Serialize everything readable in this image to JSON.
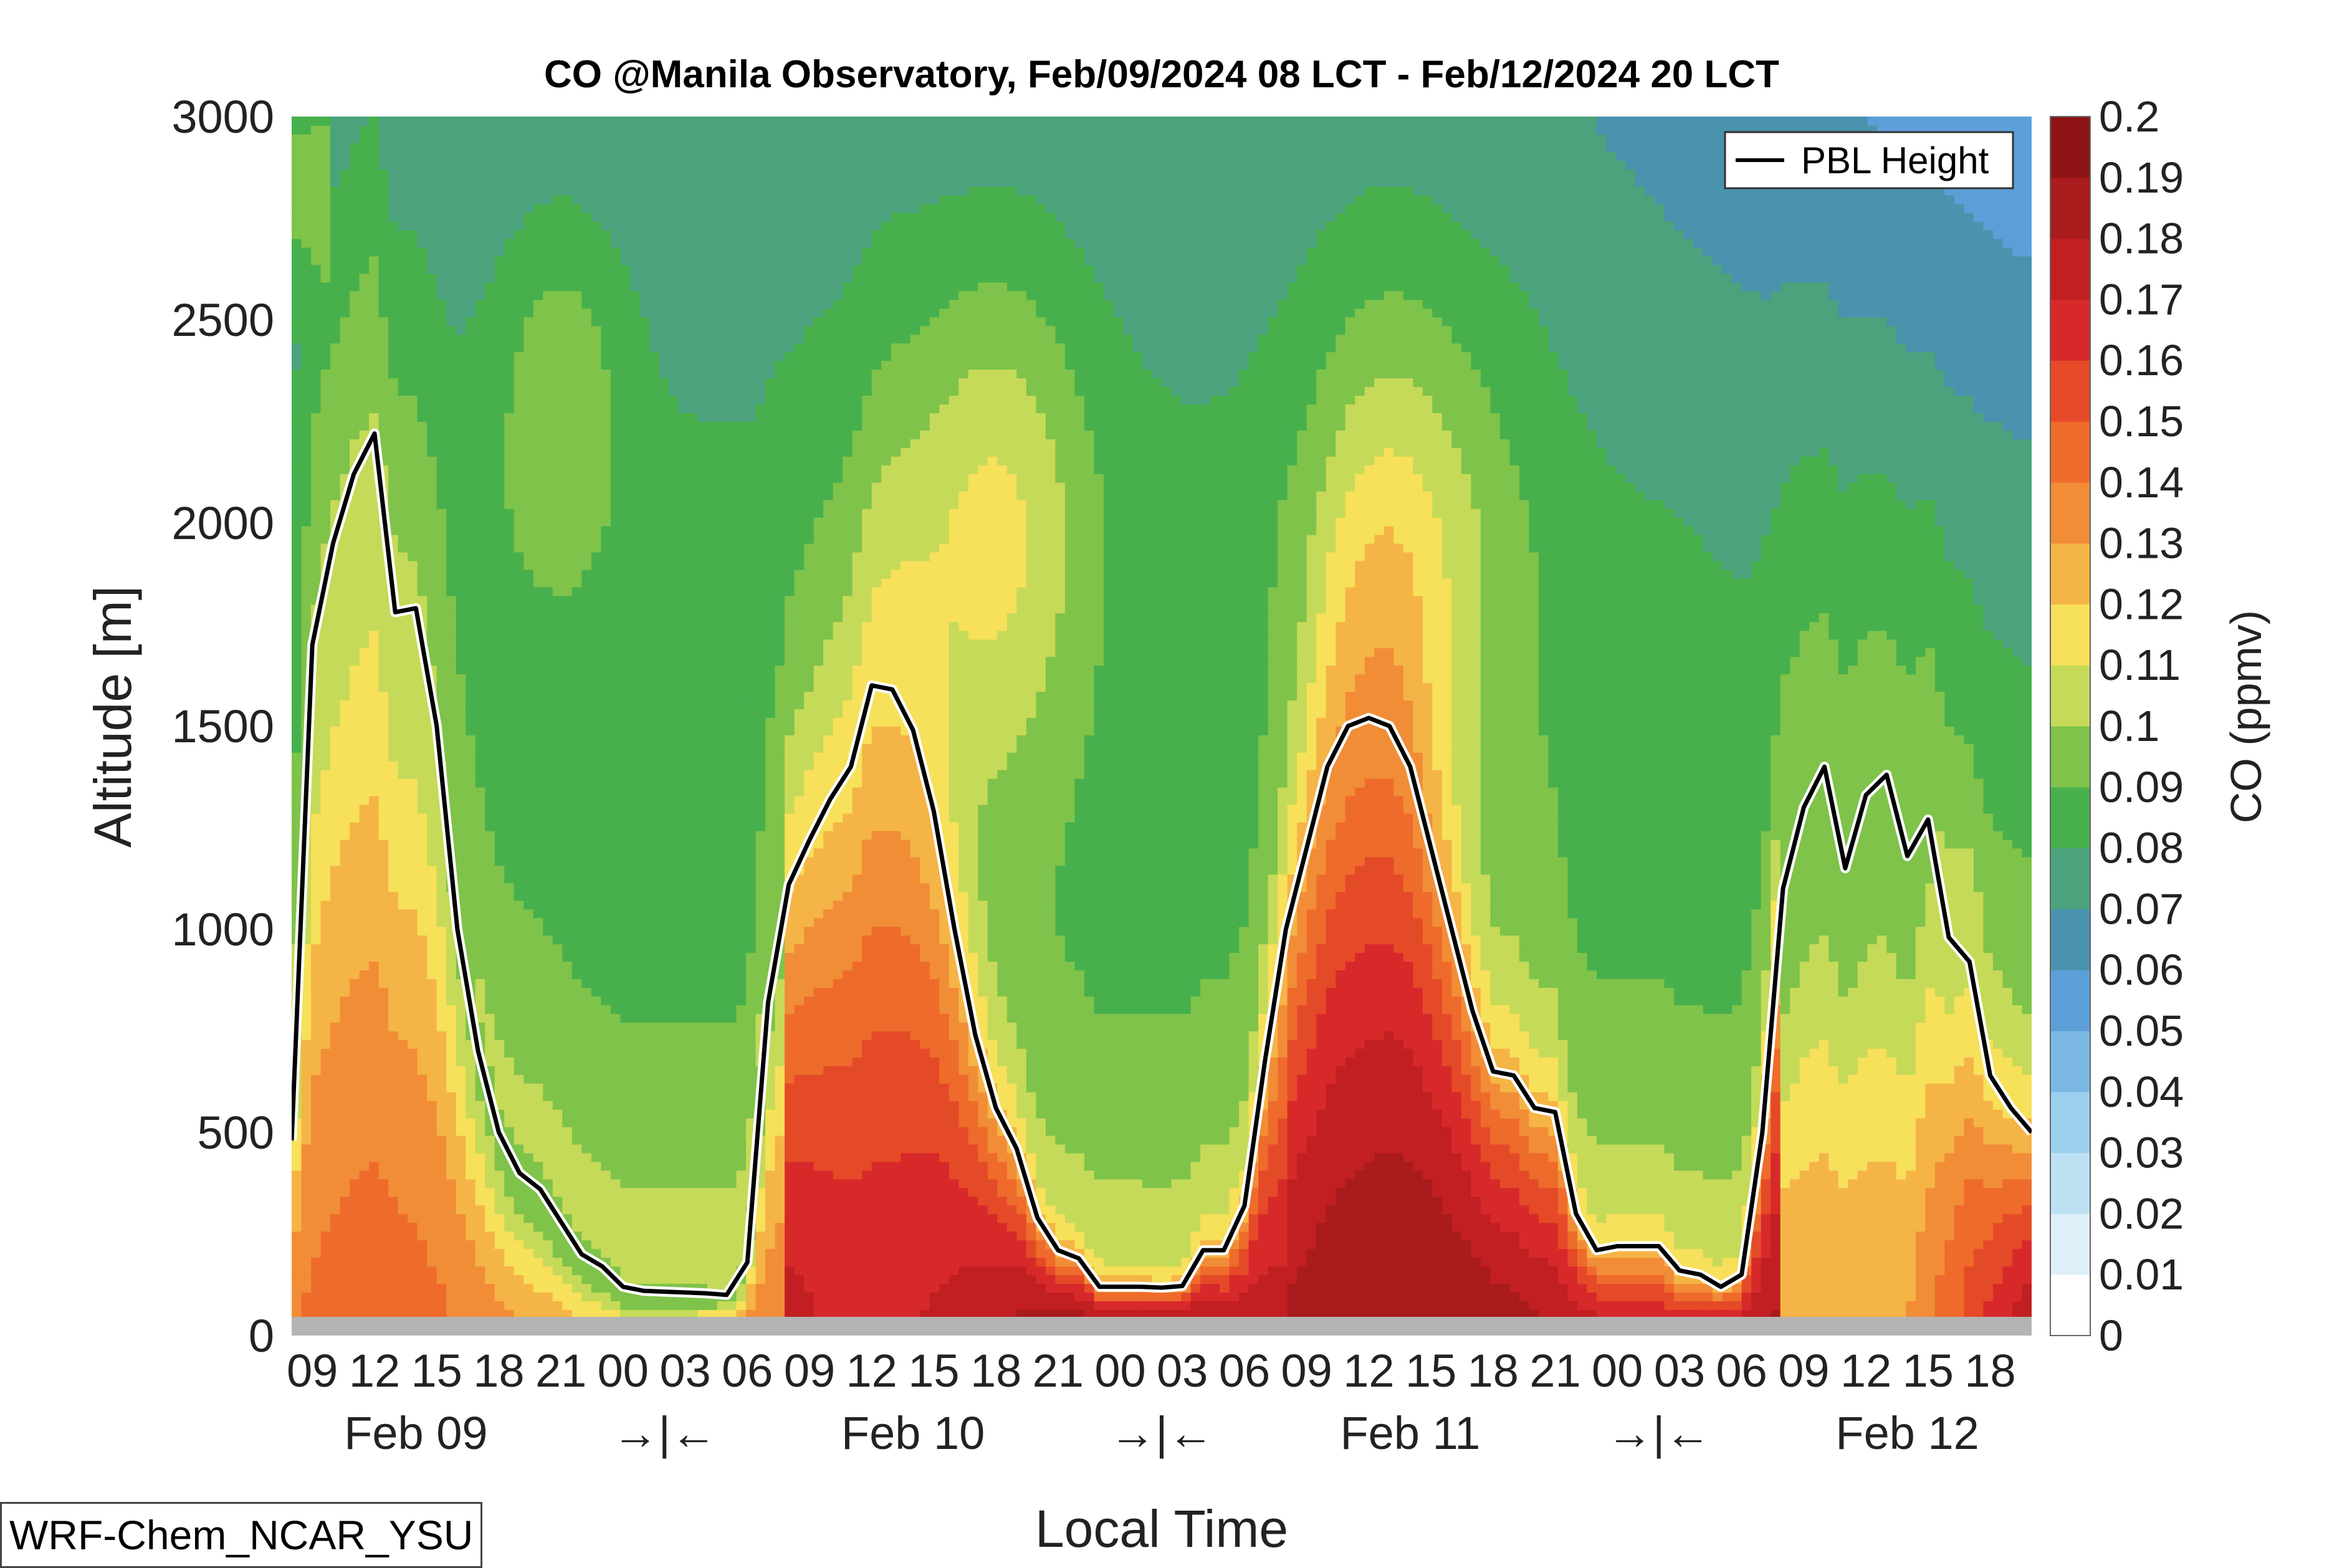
{
  "chart_data": {
    "type": "heatmap",
    "title": "CO @Manila Observatory, Feb/09/2024 08 LCT - Feb/12/2024 20 LCT",
    "xlabel": "Local Time",
    "ylabel": "Altitude [m]",
    "ylim": [
      0,
      3000
    ],
    "yticks": [
      "0",
      "500",
      "1000",
      "1500",
      "2000",
      "2500",
      "3000"
    ],
    "x_hours_start": 8,
    "x_hours_end": 92,
    "xticks": [
      "09",
      "12",
      "15",
      "18",
      "21",
      "00",
      "03",
      "06",
      "09",
      "12",
      "15",
      "18",
      "21",
      "00",
      "03",
      "06",
      "09",
      "12",
      "15",
      "18",
      "21",
      "00",
      "03",
      "06",
      "09",
      "12",
      "15",
      "18"
    ],
    "day_labels": [
      "Feb 09",
      "→|←",
      "Feb 10",
      "→|←",
      "Feb 11",
      "→|←",
      "Feb 12"
    ],
    "colorbar": {
      "label": "CO (ppmv)",
      "levels": [
        "0",
        "0.01",
        "0.02",
        "0.03",
        "0.04",
        "0.05",
        "0.06",
        "0.07",
        "0.08",
        "0.09",
        "0.1",
        "0.11",
        "0.12",
        "0.13",
        "0.14",
        "0.15",
        "0.16",
        "0.17",
        "0.18",
        "0.19",
        "0.2"
      ],
      "colors": [
        "#ffffff",
        "#dff0fa",
        "#bde1f3",
        "#9ccfee",
        "#7bb8e3",
        "#5c9fd8",
        "#4a92ae",
        "#4ba27d",
        "#47b04d",
        "#7fc34a",
        "#c5da58",
        "#f7e05a",
        "#f5b446",
        "#f18d37",
        "#ee6b2b",
        "#e54a28",
        "#d8292a",
        "#c11f22",
        "#a91b1c",
        "#8e1416"
      ]
    },
    "series": [
      {
        "name": "PBL Height",
        "type": "line",
        "x": [
          8,
          9,
          10,
          11,
          12,
          13,
          14,
          15,
          16,
          17,
          18,
          19,
          20,
          21,
          22,
          23,
          24,
          25,
          26,
          27,
          28,
          29,
          30,
          31,
          32,
          33,
          34,
          35,
          36,
          37,
          38,
          39,
          40,
          41,
          42,
          43,
          44,
          45,
          46,
          47,
          48,
          49,
          50,
          51,
          52,
          53,
          54,
          55,
          56,
          57,
          58,
          59,
          60,
          61,
          62,
          63,
          64,
          65,
          66,
          67,
          68,
          69,
          70,
          71,
          72,
          73,
          74,
          75,
          76,
          77,
          78,
          79,
          80,
          81,
          82,
          83,
          84,
          85,
          86,
          87,
          88,
          89,
          90,
          91,
          92
        ],
        "y": [
          480,
          1700,
          1950,
          2120,
          2220,
          1780,
          1790,
          1500,
          1000,
          700,
          500,
          400,
          360,
          280,
          200,
          170,
          120,
          110,
          108,
          106,
          104,
          100,
          180,
          820,
          1110,
          1220,
          1320,
          1400,
          1600,
          1590,
          1490,
          1290,
          1000,
          740,
          560,
          460,
          290,
          210,
          190,
          120,
          120,
          120,
          118,
          122,
          210,
          210,
          320,
          680,
          1000,
          1200,
          1400,
          1500,
          1520,
          1500,
          1400,
          1200,
          1000,
          800,
          650,
          640,
          560,
          550,
          300,
          210,
          220,
          220,
          220,
          160,
          150,
          120,
          150,
          500,
          1100,
          1300,
          1400,
          1150,
          1330,
          1380,
          1180,
          1270,
          980,
          920,
          640,
          560,
          500
        ]
      }
    ]
  },
  "legend": {
    "entries": [
      "PBL Height"
    ]
  },
  "model_label": "WRF-Chem_NCAR_YSU"
}
